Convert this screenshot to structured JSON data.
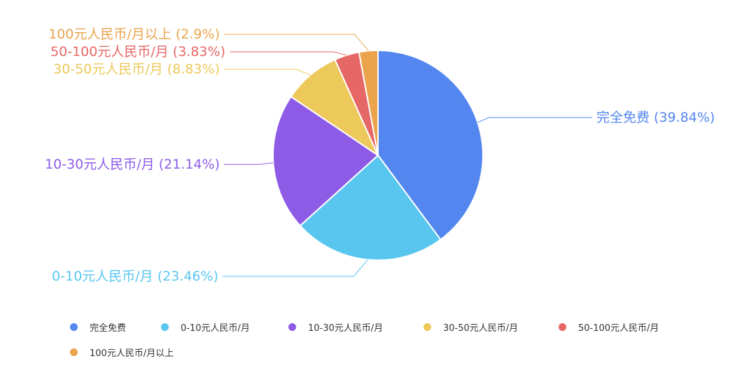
{
  "chart_data": {
    "type": "pie",
    "title": "",
    "start": "12 o'clock",
    "direction": "clockwise",
    "legend": "bottom",
    "slices": [
      {
        "label": "完全免费",
        "value": 39.84,
        "value_label": "完全免费 (39.84%)",
        "color": "#5486F0"
      },
      {
        "label": "0-10元人民币/月",
        "value": 23.46,
        "value_label": "0-10元人民币/月 (23.46%)",
        "color": "#59C6F0"
      },
      {
        "label": "10-30元人民币/月",
        "value": 21.14,
        "value_label": "10-30元人民币/月 (21.14%)",
        "color": "#8D5BE6"
      },
      {
        "label": "30-50元人民币/月",
        "value": 8.83,
        "value_label": "30-50元人民币/月 (8.83%)",
        "color": "#EDC85A"
      },
      {
        "label": "50-100元人民币/月",
        "value": 3.83,
        "value_label": "50-100元人民币/月 (3.83%)",
        "color": "#E66866"
      },
      {
        "label": "100元人民币/月以上",
        "value": 2.9,
        "value_label": "100元人民币/月以上 (2.9%)",
        "color": "#EBA34C"
      }
    ]
  }
}
